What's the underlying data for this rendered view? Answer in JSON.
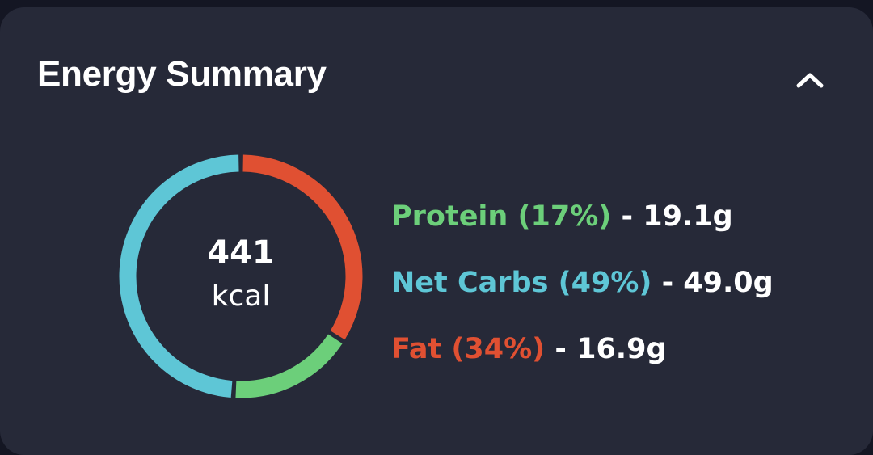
{
  "header": {
    "title": "Energy Summary",
    "collapse_icon": "chevron-up-icon"
  },
  "summary": {
    "calories": "441",
    "unit": "kcal"
  },
  "macros": [
    {
      "name": "Protein",
      "percent_label": "(17%)",
      "separator": "-",
      "amount": "19.1g",
      "percent": 17,
      "color": "#6ccf7a"
    },
    {
      "name": "Net Carbs",
      "percent_label": "(49%)",
      "separator": "-",
      "amount": "49.0g",
      "percent": 49,
      "color": "#5ec6d6"
    },
    {
      "name": "Fat",
      "percent_label": "(34%)",
      "separator": "-",
      "amount": "16.9g",
      "percent": 34,
      "color": "#e05032"
    }
  ],
  "colors": {
    "card_background": "#262938",
    "page_background": "#141623",
    "text": "#ffffff"
  }
}
